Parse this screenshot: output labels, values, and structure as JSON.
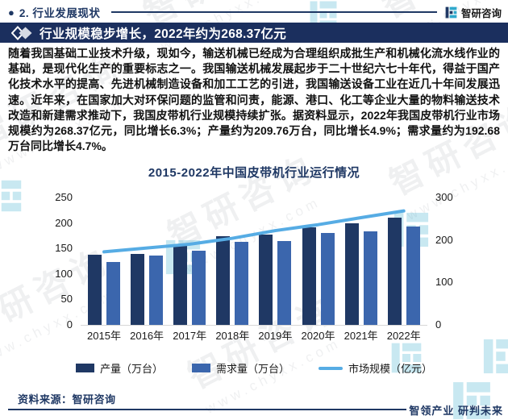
{
  "header": {
    "bullet": "●",
    "section_title": "2. 行业发展现状",
    "brand": "智研咨询"
  },
  "banner": {
    "title": "行业规模稳步增长，2022年约为268.37亿元"
  },
  "paragraph": "随着我国基础工业技术升级，现如今，输送机械已经成为合理组织成批生产和机械化流水线作业的基础，是现代化生产的重要标志之一。我国输送机械发展起步于二十世纪六七十年代，得益于国产化技术水平的提高、先进机械制造设备和加工工艺的引进，我国输送设备工业在近几十年间发展迅速。近年来，在国家加大对环保问题的监管和问责，能源、港口、化工等企业大量的物料输送技术改造和新建需求推动下，我国皮带机行业规模持续扩张。据资料显示，2022年我国皮带机行业市场规模约为268.37亿元，同比增长6.3%；产量约为209.76万台，同比增长4.9%；需求量约为192.68万台同比增长4.7%。",
  "chart_data": {
    "type": "bar",
    "title": "2015-2022年中国皮带机行业运行情况",
    "categories": [
      "2015年",
      "2016年",
      "2017年",
      "2018年",
      "2019年",
      "2020年",
      "2021年",
      "2022年"
    ],
    "series": [
      {
        "name": "产量（万台）",
        "type": "bar",
        "axis": "left",
        "color": "#1f3864",
        "values": [
          138,
          139,
          156,
          174,
          177,
          191,
          200,
          209.76
        ]
      },
      {
        "name": "需求量（万台）",
        "type": "bar",
        "axis": "left",
        "color": "#3b66ad",
        "values": [
          124,
          136,
          145,
          163,
          165,
          181,
          184,
          192.68
        ]
      },
      {
        "name": "市场规模（亿元）",
        "type": "line",
        "axis": "right",
        "color": "#56ace4",
        "values": [
          172,
          181,
          190,
          204,
          222,
          236,
          252.5,
          268.37
        ]
      }
    ],
    "left_axis": {
      "ticks": [
        0,
        50,
        100,
        150,
        200,
        250
      ],
      "max": 250
    },
    "right_axis": {
      "ticks": [
        0,
        100,
        200,
        300
      ],
      "max": 300
    },
    "grid": false,
    "legend_position": "bottom"
  },
  "footer": {
    "source": "资料来源：智研咨询",
    "tagline": "智领产业 研判未来"
  },
  "watermark": {
    "brand": "智研咨询",
    "url": "www.chyxx.com"
  },
  "colors": {
    "navy": "#1f3864",
    "banner_bg": "#1b2f5e",
    "bar_dark": "#1f3864",
    "bar_light": "#3b66ad",
    "line_blue": "#56ace4",
    "logo_teal": "#2fa8cc"
  }
}
